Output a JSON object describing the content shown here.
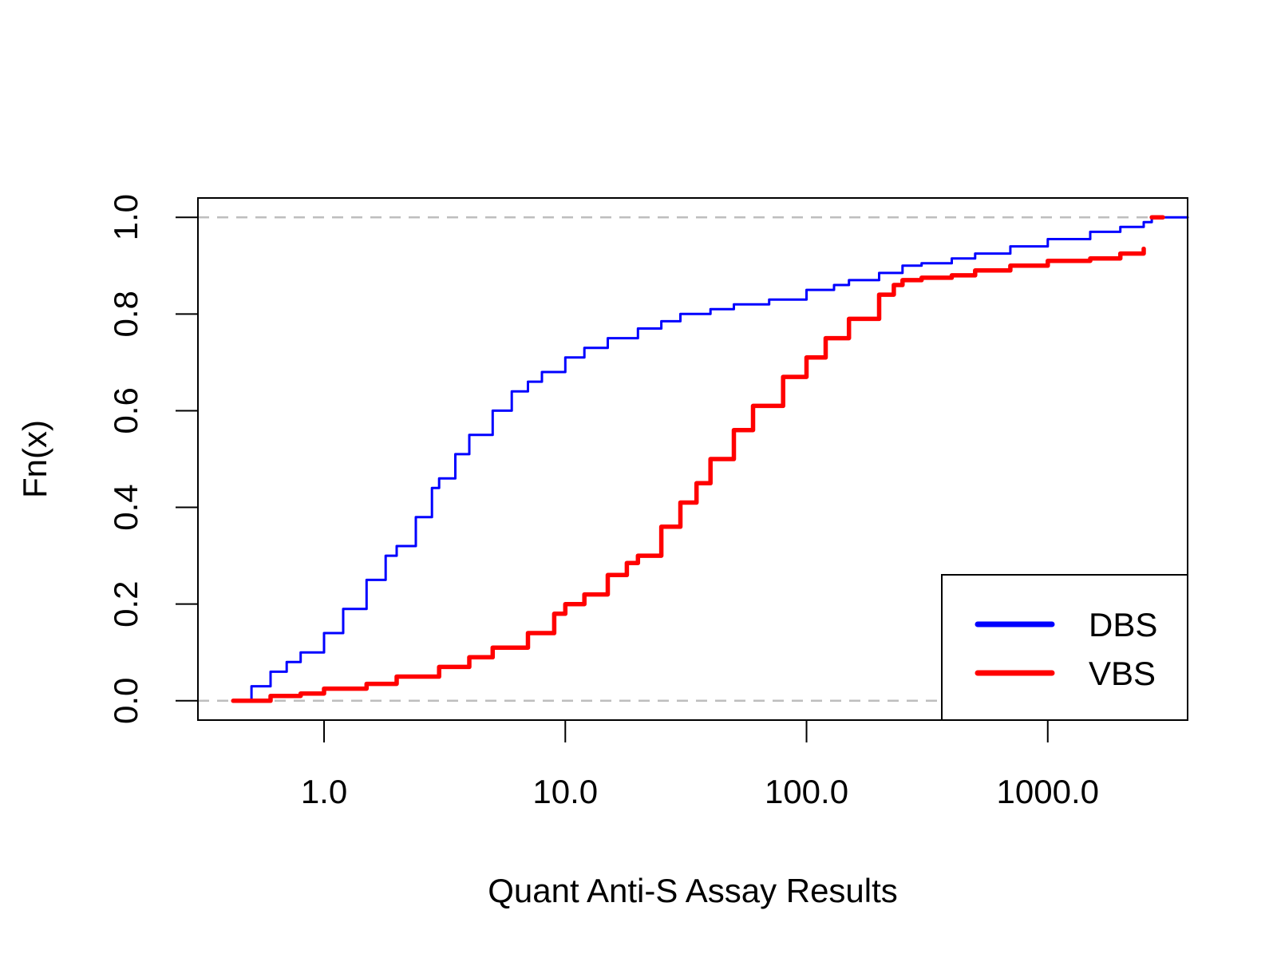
{
  "chart_data": {
    "type": "line",
    "title": "",
    "xlabel": "Quant Anti-S Assay Results",
    "ylabel": "Fn(x)",
    "x_scale": "log",
    "xlim": [
      0.3,
      3800
    ],
    "ylim": [
      -0.04,
      1.04
    ],
    "x_ticks": [
      {
        "value": 1,
        "label": "1.0"
      },
      {
        "value": 10,
        "label": "10.0"
      },
      {
        "value": 100,
        "label": "100.0"
      },
      {
        "value": 1000,
        "label": "1000.0"
      }
    ],
    "y_ticks": [
      {
        "value": 0,
        "label": "0.0"
      },
      {
        "value": 0.2,
        "label": "0.2"
      },
      {
        "value": 0.4,
        "label": "0.4"
      },
      {
        "value": 0.6,
        "label": "0.6"
      },
      {
        "value": 0.8,
        "label": "0.8"
      },
      {
        "value": 1,
        "label": "1.0"
      }
    ],
    "reference_lines": [
      0,
      1
    ],
    "reference_line_color": "#bebebe",
    "legend": {
      "position": "bottom-right",
      "entries": [
        "DBS",
        "VBS"
      ]
    },
    "series": [
      {
        "name": "DBS",
        "color": "#0000ff",
        "x": [
          0.42,
          0.5,
          0.6,
          0.7,
          0.8,
          1.0,
          1.2,
          1.5,
          1.8,
          2.0,
          2.4,
          2.8,
          3.0,
          3.5,
          4.0,
          5.0,
          6.0,
          7.0,
          8.0,
          10.0,
          12.0,
          15.0,
          20.0,
          25.0,
          30.0,
          40.0,
          50.0,
          70.0,
          100.0,
          130.0,
          150.0,
          200.0,
          250.0,
          300.0,
          400.0,
          500.0,
          700.0,
          1000.0,
          1500.0,
          2000.0,
          2500.0,
          2700.0,
          3800.0
        ],
        "y": [
          0.0,
          0.03,
          0.06,
          0.08,
          0.1,
          0.14,
          0.19,
          0.25,
          0.3,
          0.32,
          0.38,
          0.44,
          0.46,
          0.51,
          0.55,
          0.6,
          0.64,
          0.66,
          0.68,
          0.71,
          0.73,
          0.75,
          0.77,
          0.785,
          0.8,
          0.81,
          0.82,
          0.83,
          0.85,
          0.86,
          0.87,
          0.885,
          0.9,
          0.905,
          0.915,
          0.925,
          0.94,
          0.955,
          0.97,
          0.98,
          0.99,
          1.0,
          1.0
        ]
      },
      {
        "name": "VBS",
        "color": "#ff0000",
        "x": [
          0.42,
          0.6,
          0.8,
          1.0,
          1.5,
          2.0,
          3.0,
          4.0,
          5.0,
          7.0,
          9.0,
          10.0,
          12.0,
          15.0,
          18.0,
          20.0,
          25.0,
          30.0,
          35.0,
          40.0,
          50.0,
          60.0,
          80.0,
          100.0,
          120.0,
          150.0,
          200.0,
          230.0,
          250.0,
          300.0,
          400.0,
          500.0,
          700.0,
          1000.0,
          1500.0,
          2000.0,
          2500.0
        ],
        "y": [
          0.0,
          0.01,
          0.015,
          0.025,
          0.035,
          0.05,
          0.07,
          0.09,
          0.11,
          0.14,
          0.18,
          0.2,
          0.22,
          0.26,
          0.285,
          0.3,
          0.36,
          0.41,
          0.45,
          0.5,
          0.56,
          0.61,
          0.67,
          0.71,
          0.75,
          0.79,
          0.84,
          0.86,
          0.87,
          0.875,
          0.88,
          0.89,
          0.9,
          0.91,
          0.915,
          0.925,
          0.935
        ]
      },
      {
        "name": "",
        "color": "#ff0000",
        "x": [
          2700,
          3000
        ],
        "y": [
          1.0,
          1.0
        ]
      }
    ]
  }
}
